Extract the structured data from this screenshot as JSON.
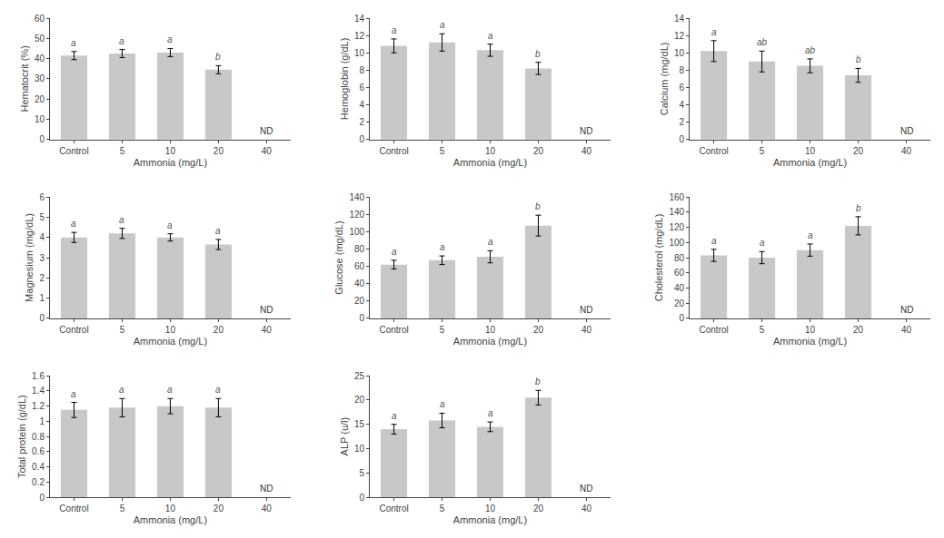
{
  "chart_data": [
    {
      "type": "bar",
      "ylabel": "Hematocrit (%)",
      "xlabel": "Ammonia (mg/L)",
      "categories": [
        "Control",
        "5",
        "10",
        "20",
        "40"
      ],
      "values": [
        41.5,
        42.5,
        43.0,
        34.5,
        null
      ],
      "errors": [
        2.0,
        2.0,
        2.0,
        2.0,
        null
      ],
      "letters": [
        "a",
        "a",
        "a",
        "b",
        null
      ],
      "annotations": [
        {
          "text": "ND",
          "category": "40"
        }
      ],
      "ylim": [
        0,
        60
      ],
      "yticks": [
        0,
        10,
        20,
        30,
        40,
        50,
        60
      ],
      "color": "#c8c8c8",
      "grid": false
    },
    {
      "type": "bar",
      "ylabel": "Hemoglobin (g/dL)",
      "xlabel": "Ammonia (mg/L)",
      "categories": [
        "Control",
        "5",
        "10",
        "20",
        "40"
      ],
      "values": [
        10.8,
        11.2,
        10.3,
        8.2,
        null
      ],
      "errors": [
        0.8,
        1.0,
        0.7,
        0.7,
        null
      ],
      "letters": [
        "a",
        "a",
        "a",
        "b",
        null
      ],
      "annotations": [
        {
          "text": "ND",
          "category": "40"
        }
      ],
      "ylim": [
        0,
        14
      ],
      "yticks": [
        0,
        2,
        4,
        6,
        8,
        10,
        12,
        14
      ],
      "color": "#c8c8c8",
      "grid": false
    },
    {
      "type": "bar",
      "ylabel": "Calcium (mg/dL)",
      "xlabel": "Ammonia (mg/L)",
      "categories": [
        "Control",
        "5",
        "10",
        "20",
        "40"
      ],
      "values": [
        10.2,
        9.0,
        8.5,
        7.4,
        null
      ],
      "errors": [
        1.2,
        1.2,
        0.8,
        0.8,
        null
      ],
      "letters": [
        "a",
        "ab",
        "ab",
        "b",
        null
      ],
      "annotations": [
        {
          "text": "ND",
          "category": "40"
        }
      ],
      "ylim": [
        0,
        14
      ],
      "yticks": [
        0,
        2,
        4,
        6,
        8,
        10,
        12,
        14
      ],
      "color": "#c8c8c8",
      "grid": false
    },
    {
      "type": "bar",
      "ylabel": "Magnesium (mg/dL)",
      "xlabel": "Ammonia (mg/L)",
      "categories": [
        "Control",
        "5",
        "10",
        "20",
        "40"
      ],
      "values": [
        4.0,
        4.2,
        4.0,
        3.65,
        null
      ],
      "errors": [
        0.25,
        0.25,
        0.18,
        0.25,
        null
      ],
      "letters": [
        "a",
        "a",
        "a",
        "a",
        null
      ],
      "annotations": [
        {
          "text": "ND",
          "category": "40"
        }
      ],
      "ylim": [
        0,
        6
      ],
      "yticks": [
        0,
        1,
        2,
        3,
        4,
        5,
        6
      ],
      "color": "#c8c8c8",
      "grid": false
    },
    {
      "type": "bar",
      "ylabel": "Glucose (mg/dL)",
      "xlabel": "Ammonia (mg/L)",
      "categories": [
        "Control",
        "5",
        "10",
        "20",
        "40"
      ],
      "values": [
        62,
        67,
        71,
        107,
        null
      ],
      "errors": [
        5,
        5,
        7,
        12,
        null
      ],
      "letters": [
        "a",
        "a",
        "a",
        "b",
        null
      ],
      "annotations": [
        {
          "text": "ND",
          "category": "40"
        }
      ],
      "ylim": [
        0,
        140
      ],
      "yticks": [
        0,
        20,
        40,
        60,
        80,
        100,
        120,
        140
      ],
      "color": "#c8c8c8",
      "grid": false
    },
    {
      "type": "bar",
      "ylabel": "Cholesterol (mg/dL)",
      "xlabel": "Ammonia (mg/L)",
      "categories": [
        "Control",
        "5",
        "10",
        "20",
        "40"
      ],
      "values": [
        83,
        80,
        90,
        122,
        null
      ],
      "errors": [
        8,
        8,
        8,
        12,
        null
      ],
      "letters": [
        "a",
        "a",
        "a",
        "b",
        null
      ],
      "annotations": [
        {
          "text": "ND",
          "category": "40"
        }
      ],
      "ylim": [
        0,
        160
      ],
      "yticks": [
        0,
        20,
        40,
        60,
        80,
        100,
        120,
        140,
        160
      ],
      "color": "#c8c8c8",
      "grid": false
    },
    {
      "type": "bar",
      "ylabel": "Total protein (g/dL)",
      "xlabel": "Ammonia (mg/L)",
      "categories": [
        "Control",
        "5",
        "10",
        "20",
        "40"
      ],
      "values": [
        1.15,
        1.18,
        1.2,
        1.18,
        null
      ],
      "errors": [
        0.1,
        0.12,
        0.1,
        0.12,
        null
      ],
      "letters": [
        "a",
        "a",
        "a",
        "a",
        null
      ],
      "annotations": [
        {
          "text": "ND",
          "category": "40"
        }
      ],
      "ylim": [
        0,
        1.6
      ],
      "yticks": [
        0,
        0.2,
        0.4,
        0.6,
        0.8,
        1,
        1.2,
        1.4,
        1.6
      ],
      "color": "#c8c8c8",
      "grid": false
    },
    {
      "type": "bar",
      "ylabel": "ALP (u/l)",
      "xlabel": "Ammonia (mg/L)",
      "categories": [
        "Control",
        "5",
        "10",
        "20",
        "40"
      ],
      "values": [
        14.0,
        15.8,
        14.5,
        20.5,
        null
      ],
      "errors": [
        1.0,
        1.5,
        1.0,
        1.5,
        null
      ],
      "letters": [
        "a",
        "a",
        "a",
        "b",
        null
      ],
      "annotations": [
        {
          "text": "ND",
          "category": "40"
        }
      ],
      "ylim": [
        0,
        25
      ],
      "yticks": [
        0,
        5,
        10,
        15,
        20,
        25
      ],
      "color": "#c8c8c8",
      "grid": false
    }
  ]
}
